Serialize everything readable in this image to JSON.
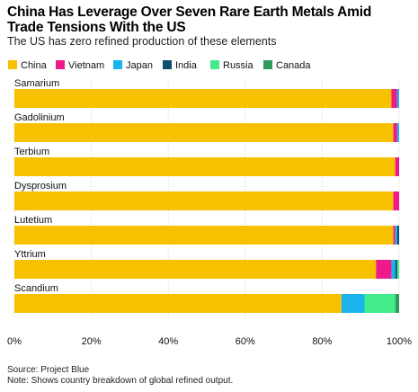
{
  "chart_data": {
    "type": "bar",
    "orientation": "horizontal",
    "stacked": true,
    "title": "China Has Leverage Over Seven Rare Earth Metals Amid Trade Tensions With the US",
    "subtitle": "The US has zero refined production of these elements",
    "source": "Source: Project Blue",
    "note": "Note: Shows country breakdown of global refined output.",
    "xlabel": "",
    "ylabel": "",
    "xlim": [
      0,
      100
    ],
    "x_tick_values": [
      0,
      20,
      40,
      60,
      80,
      100
    ],
    "x_tick_labels": [
      "0%",
      "20%",
      "40%",
      "60%",
      "80%",
      "100%"
    ],
    "grid": true,
    "legend_position": "top-left",
    "categories": [
      "Samarium",
      "Gadolinium",
      "Terbium",
      "Dysprosium",
      "Lutetium",
      "Yttrium",
      "Scandium"
    ],
    "series": [
      {
        "name": "China",
        "color": "#f7c100",
        "values": [
          98,
          98.5,
          99,
          98.5,
          98.5,
          94,
          85
        ]
      },
      {
        "name": "Vietnam",
        "color": "#ee1a8c",
        "values": [
          1.5,
          1,
          1,
          1.5,
          0.5,
          4,
          0
        ]
      },
      {
        "name": "Japan",
        "color": "#1ab3ec",
        "values": [
          0.5,
          0.5,
          0,
          0,
          0.5,
          1,
          6
        ]
      },
      {
        "name": "India",
        "color": "#0c4f6e",
        "values": [
          0,
          0,
          0,
          0,
          0.5,
          0.5,
          0
        ]
      },
      {
        "name": "Russia",
        "color": "#43ec8b",
        "values": [
          0,
          0,
          0,
          0,
          0,
          0.5,
          8
        ]
      },
      {
        "name": "Canada",
        "color": "#2f9c5e",
        "values": [
          0,
          0,
          0,
          0,
          0,
          0,
          1
        ]
      }
    ]
  }
}
